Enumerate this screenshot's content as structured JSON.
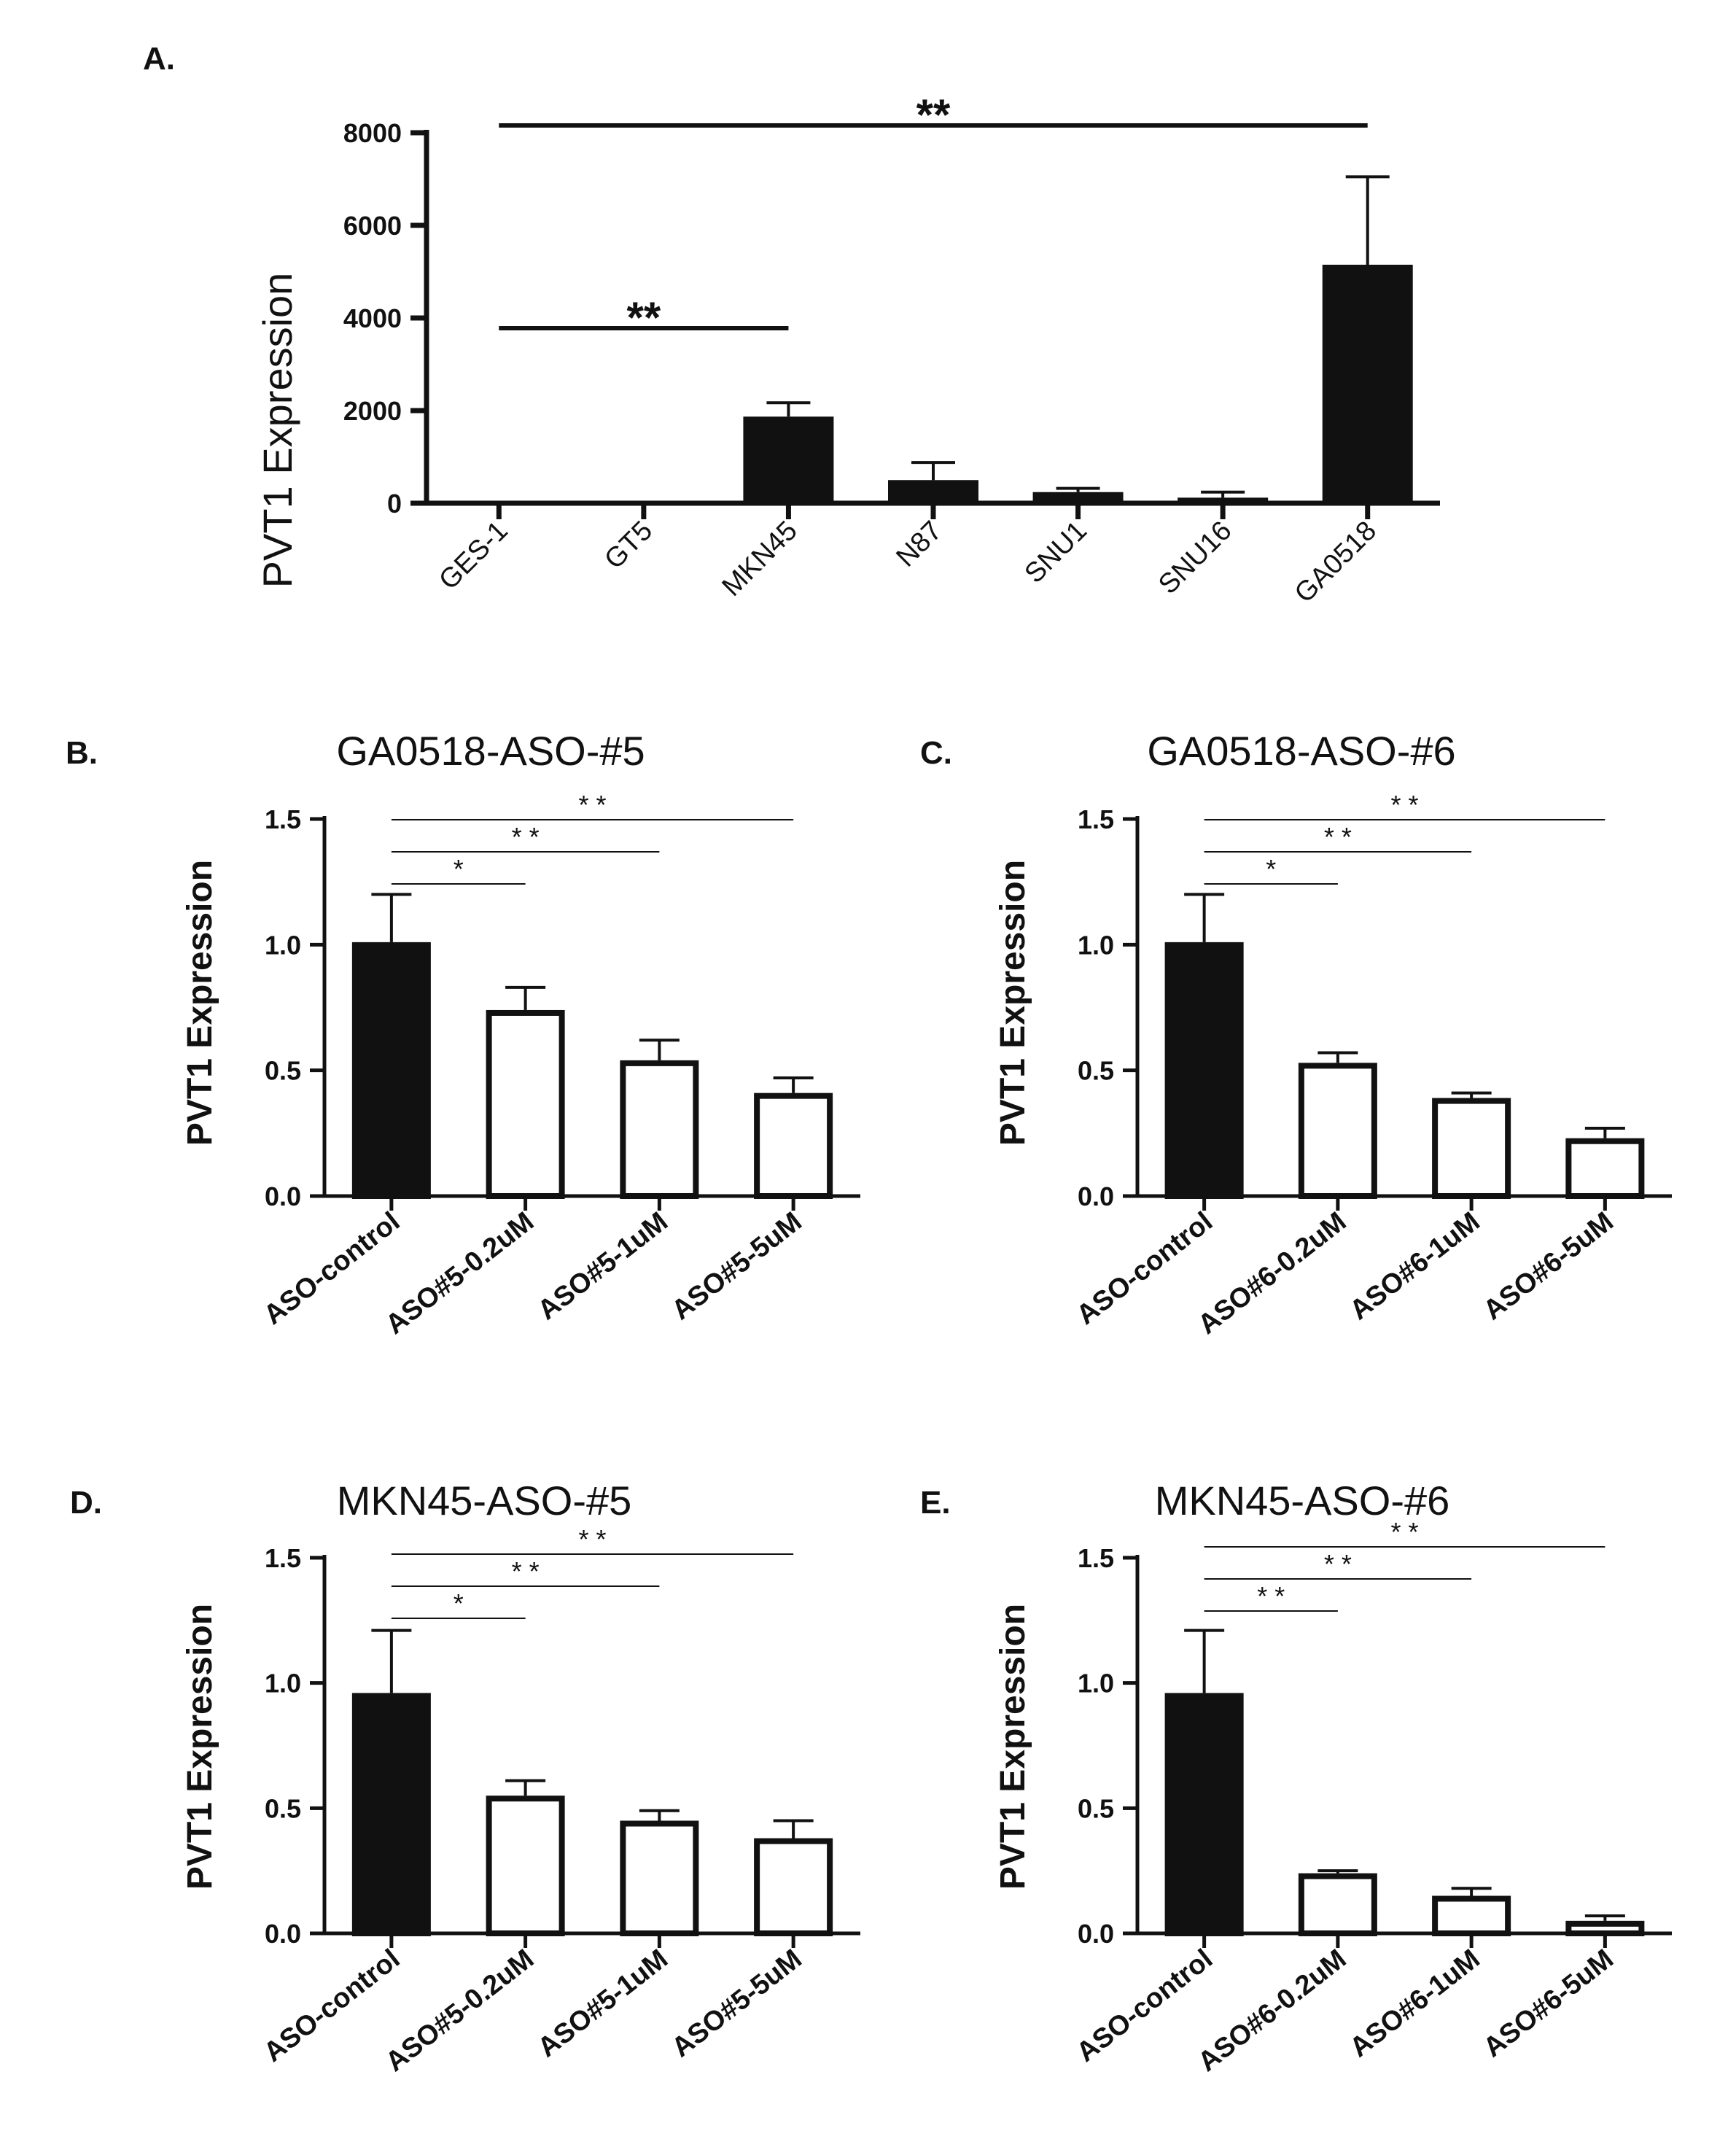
{
  "figure": {
    "background": "#ffffff",
    "ink": "#111111"
  },
  "chart_data": [
    {
      "id": "A",
      "panel_label": "A.",
      "type": "bar",
      "title": "",
      "xlabel": "",
      "ylabel": "PVT1 Expression",
      "ylim": [
        0,
        8000
      ],
      "yticks": [
        0,
        2000,
        4000,
        6000,
        8000
      ],
      "ytick_labels": [
        "0",
        "2000",
        "4000",
        "6000",
        "8000"
      ],
      "categories": [
        "GES-1",
        "GT5",
        "MKN45",
        "N87",
        "SNU1",
        "SNU16",
        "GA0518"
      ],
      "values": [
        0,
        0,
        1870,
        500,
        240,
        120,
        5150
      ],
      "errors": [
        0,
        0,
        300,
        380,
        80,
        120,
        1900
      ],
      "fills": [
        "black",
        "black",
        "black",
        "black",
        "black",
        "black",
        "black"
      ],
      "significance": [
        {
          "from": 0,
          "to": 2,
          "label": "**"
        },
        {
          "from": 0,
          "to": 6,
          "label": "**"
        }
      ]
    },
    {
      "id": "B",
      "panel_label": "B.",
      "type": "bar",
      "title": "GA0518-ASO-#5",
      "xlabel": "",
      "ylabel": "PVT1 Expression",
      "ylim": [
        0,
        1.5
      ],
      "yticks": [
        0,
        0.5,
        1.0,
        1.5
      ],
      "ytick_labels": [
        "0.0",
        "0.5",
        "1.0",
        "1.5"
      ],
      "categories": [
        "ASO-control",
        "ASO#5-0.2uM",
        "ASO#5-1uM",
        "ASO#5-5uM"
      ],
      "values": [
        1.01,
        0.74,
        0.54,
        0.41
      ],
      "errors": [
        0.19,
        0.09,
        0.08,
        0.06
      ],
      "fills": [
        "black",
        "white",
        "white",
        "white"
      ],
      "significance": [
        {
          "from": 0,
          "to": 1,
          "label": "*"
        },
        {
          "from": 0,
          "to": 2,
          "label": "* *"
        },
        {
          "from": 0,
          "to": 3,
          "label": "* *"
        }
      ]
    },
    {
      "id": "C",
      "panel_label": "C.",
      "type": "bar",
      "title": "GA0518-ASO-#6",
      "xlabel": "",
      "ylabel": "PVT1 Expression",
      "ylim": [
        0,
        1.5
      ],
      "yticks": [
        0,
        0.5,
        1.0,
        1.5
      ],
      "ytick_labels": [
        "0.0",
        "0.5",
        "1.0",
        "1.5"
      ],
      "categories": [
        "ASO-control",
        "ASO#6-0.2uM",
        "ASO#6-1uM",
        "ASO#6-5uM"
      ],
      "values": [
        1.01,
        0.53,
        0.39,
        0.23
      ],
      "errors": [
        0.19,
        0.04,
        0.02,
        0.04
      ],
      "fills": [
        "black",
        "white",
        "white",
        "white"
      ],
      "significance": [
        {
          "from": 0,
          "to": 1,
          "label": "*"
        },
        {
          "from": 0,
          "to": 2,
          "label": "* *"
        },
        {
          "from": 0,
          "to": 3,
          "label": "* *"
        }
      ]
    },
    {
      "id": "D",
      "panel_label": "D.",
      "type": "bar",
      "title": "MKN45-ASO-#5",
      "xlabel": "",
      "ylabel": "PVT1 Expression",
      "ylim": [
        0,
        1.5
      ],
      "yticks": [
        0,
        0.5,
        1.0,
        1.5
      ],
      "ytick_labels": [
        "0.0",
        "0.5",
        "1.0",
        "1.5"
      ],
      "categories": [
        "ASO-control",
        "ASO#5-0.2uM",
        "ASO#5-1uM",
        "ASO#5-5uM"
      ],
      "values": [
        0.96,
        0.55,
        0.45,
        0.38
      ],
      "errors": [
        0.25,
        0.06,
        0.04,
        0.07
      ],
      "fills": [
        "black",
        "white",
        "white",
        "white"
      ],
      "significance": [
        {
          "from": 0,
          "to": 1,
          "label": "*"
        },
        {
          "from": 0,
          "to": 2,
          "label": "* *"
        },
        {
          "from": 0,
          "to": 3,
          "label": "* *"
        }
      ]
    },
    {
      "id": "E",
      "panel_label": "E.",
      "type": "bar",
      "title": "MKN45-ASO-#6",
      "xlabel": "",
      "ylabel": "PVT1 Expression",
      "ylim": [
        0,
        1.5
      ],
      "yticks": [
        0,
        0.5,
        1.0,
        1.5
      ],
      "ytick_labels": [
        "0.0",
        "0.5",
        "1.0",
        "1.5"
      ],
      "categories": [
        "ASO-control",
        "ASO#6-0.2uM",
        "ASO#6-1uM",
        "ASO#6-5uM"
      ],
      "values": [
        0.96,
        0.24,
        0.15,
        0.05
      ],
      "errors": [
        0.25,
        0.01,
        0.03,
        0.02
      ],
      "fills": [
        "black",
        "white",
        "white",
        "white"
      ],
      "significance": [
        {
          "from": 0,
          "to": 1,
          "label": "* *"
        },
        {
          "from": 0,
          "to": 2,
          "label": "* *"
        },
        {
          "from": 0,
          "to": 3,
          "label": "* *"
        }
      ]
    }
  ]
}
